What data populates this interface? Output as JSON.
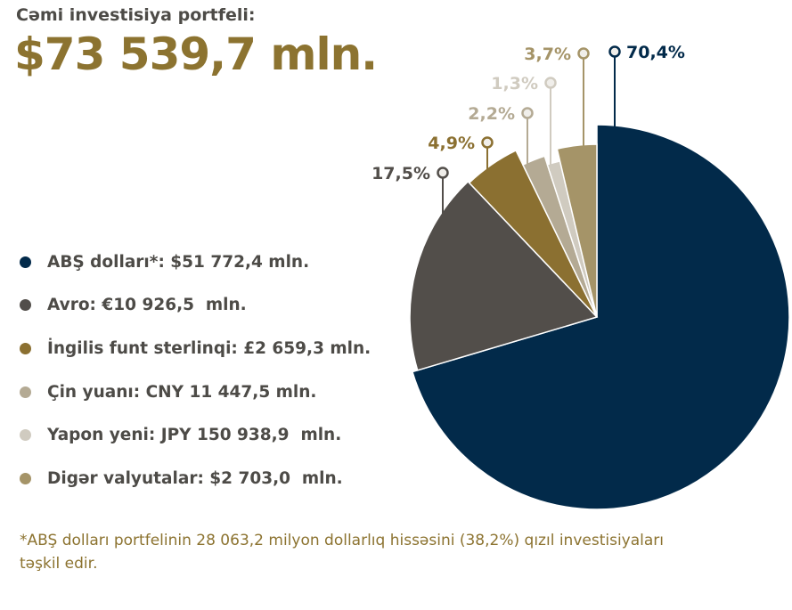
{
  "title": "Cəmi investisiya portfeli:",
  "total": "$73 539,7 mln.",
  "footnote": "*ABŞ dolları portfelinin 28 063,2 milyon dollarlıq hissəsini (38,2%) qızıl investisiyaları təşkil edir.",
  "chart_data": {
    "type": "pie",
    "legend_position": "left",
    "slices": [
      {
        "legend": "ABŞ dolları*: $51 772,4 mln.",
        "value": 70.4,
        "label": "70,4%",
        "color": "#022a4a"
      },
      {
        "legend": "Avro: €10 926,5  mln.",
        "value": 17.5,
        "label": "17,5%",
        "color": "#524e4a"
      },
      {
        "legend": "İngilis funt sterlinqi: £2 659,3 mln.",
        "value": 4.9,
        "label": "4,9%",
        "color": "#8b7031"
      },
      {
        "legend": "Çin yuanı: CNY 11 447,5 mln.",
        "value": 2.2,
        "label": "2,2%",
        "color": "#b4aa94"
      },
      {
        "legend": "Yapon yeni: JPY 150 938,9  mln.",
        "value": 1.3,
        "label": "1,3%",
        "color": "#d0cbc0"
      },
      {
        "legend": "Digər valyutalar: $2 703,0  mln.",
        "value": 3.7,
        "label": "3,7%",
        "color": "#a59468"
      }
    ]
  }
}
